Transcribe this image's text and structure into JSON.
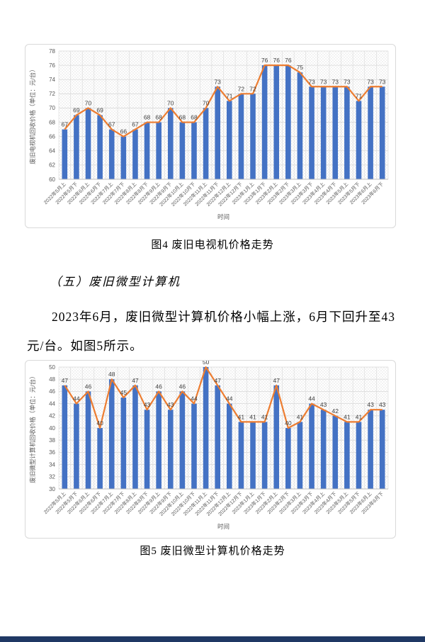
{
  "page": {
    "figure4_caption": "图4 废旧电视机价格走势",
    "section_heading": "（五）废旧微型计算机",
    "paragraph_lines": [
      "2023年6月，废旧微型计算机价格小幅上涨，6月下回升至43",
      "元/台。如图5所示。"
    ],
    "figure5_caption": "图5 废旧微型计算机价格走势"
  },
  "colors": {
    "bar": "#4472C4",
    "line": "#ED7D31",
    "grid": "#D9D9D9",
    "hatch": "#E4E4E4",
    "axis_text": "#595959",
    "label_text": "#404040",
    "axis_line": "#BFBFBF",
    "chart_border": "#D9D9D9",
    "bottom_bar": "#1F3864"
  },
  "chart_data": [
    {
      "type": "bar",
      "mark_types": [
        "bar",
        "line"
      ],
      "title": "",
      "xlabel": "时间",
      "ylabel": "废旧电视机回收价格（单位：元/台）",
      "ylim": [
        60,
        78
      ],
      "ytick_step": 2,
      "grid": true,
      "legend": "none",
      "data_labels": true,
      "categories": [
        "2022年5月上",
        "2022年5月下",
        "2022年6月上",
        "2022年6月下",
        "2022年7月上",
        "2022年7月下",
        "2022年8月上",
        "2022年8月下",
        "2022年9月上",
        "2022年9月下",
        "2022年10月上",
        "2022年10月下",
        "2022年11月上",
        "2022年11月下",
        "2022年12月上",
        "2022年12月下",
        "2023年1月上",
        "2023年1月下",
        "2023年2月上",
        "2023年2月下",
        "2023年3月上",
        "2023年3月下",
        "2023年4月上",
        "2023年4月下",
        "2023年5月上",
        "2023年5月下",
        "2023年6月上",
        "2023年6月下"
      ],
      "series": [
        {
          "name": "废旧电视机回收价格",
          "values": [
            67,
            69,
            70,
            69,
            67,
            66,
            67,
            68,
            68,
            70,
            68,
            68,
            70,
            73,
            71,
            72,
            72,
            76,
            76,
            76,
            75,
            73,
            73,
            73,
            73,
            71,
            73,
            73
          ]
        }
      ]
    },
    {
      "type": "bar",
      "mark_types": [
        "bar",
        "line"
      ],
      "title": "",
      "xlabel": "时间",
      "ylabel": "废旧微型计算机回收价格（单位：元/台）",
      "ylim": [
        30,
        50
      ],
      "ytick_step": 2,
      "grid": true,
      "legend": "none",
      "data_labels": true,
      "categories": [
        "2022年5月上",
        "2022年5月下",
        "2022年6月上",
        "2022年6月下",
        "2022年7月上",
        "2022年7月下",
        "2022年8月上",
        "2022年8月下",
        "2022年9月上",
        "2022年9月下",
        "2022年10月上",
        "2022年10月下",
        "2022年11月上",
        "2022年11月下",
        "2022年12月上",
        "2022年12月下",
        "2023年1月上",
        "2023年1月下",
        "2023年2月上",
        "2023年2月下",
        "2023年3月上",
        "2023年3月下",
        "2023年4月上",
        "2023年4月下",
        "2023年5月上",
        "2023年5月下",
        "2023年6月上",
        "2023年6月下"
      ],
      "series": [
        {
          "name": "废旧微型计算机回收价格",
          "values": [
            47,
            44,
            46,
            40,
            48,
            45,
            47,
            43,
            46,
            43,
            46,
            44,
            50,
            47,
            44,
            41,
            41,
            41,
            47,
            40,
            41,
            44,
            43,
            42,
            41,
            41,
            43,
            43
          ]
        }
      ]
    }
  ]
}
